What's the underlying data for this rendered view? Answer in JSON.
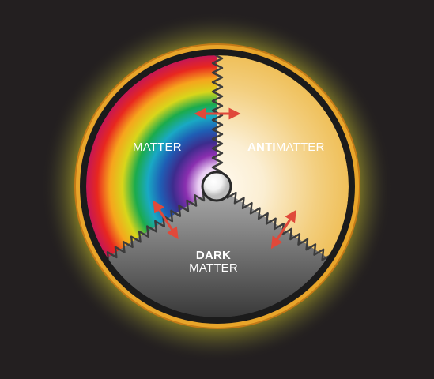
{
  "labels": {
    "matter": "MATTER",
    "anti_prefix": "ANTI",
    "anti_suffix": "MATTER",
    "dark_top": "DARK",
    "dark_bottom": "MATTER"
  },
  "colors": {
    "background": "#231f20",
    "glow": "#ffe600",
    "rim_gold": "#e8a52a",
    "rim_dark": "#1b1b1b",
    "antimatter_light": "#fbeed2",
    "antimatter_gold": "#efbf58",
    "dark_matter_light": "#9a9a9a",
    "dark_matter_dark": "#3a3a3a",
    "arrow": "#e0493a",
    "spring": "#3c3c3c"
  },
  "matter_spectrum": [
    "#ffffff",
    "#e8ccf2",
    "#8b2fb0",
    "#3d2c8d",
    "#1e5fb5",
    "#19a9c4",
    "#1bab4c",
    "#d8d61b",
    "#f6a51d",
    "#e8271f",
    "#c0145d"
  ],
  "icons": {
    "arrow": "double-arrow-icon",
    "center": "center-sphere-icon"
  }
}
